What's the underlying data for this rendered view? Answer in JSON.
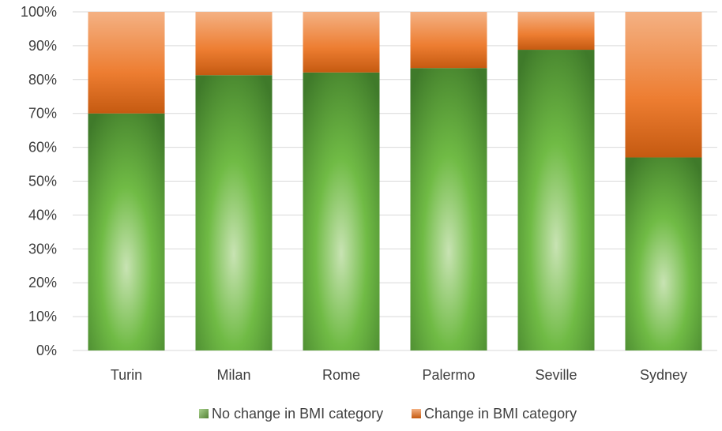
{
  "chart_data": {
    "type": "bar",
    "stacked": true,
    "categories": [
      "Turin",
      "Milan",
      "Rome",
      "Palermo",
      "Seville",
      "Sydney"
    ],
    "series": [
      {
        "name": "No change in BMI category",
        "values": [
          70,
          81.3,
          82.1,
          83.4,
          88.8,
          57
        ],
        "color": "#70AD47"
      },
      {
        "name": "Change in BMI category",
        "values": [
          30,
          18.7,
          17.9,
          16.6,
          11.2,
          43
        ],
        "color": "#ED7D31"
      }
    ],
    "ylim": [
      0,
      100
    ],
    "yticks": [
      "0%",
      "10%",
      "20%",
      "30%",
      "40%",
      "50%",
      "60%",
      "70%",
      "80%",
      "90%",
      "100%"
    ],
    "grid": true,
    "legend": "bottom"
  }
}
